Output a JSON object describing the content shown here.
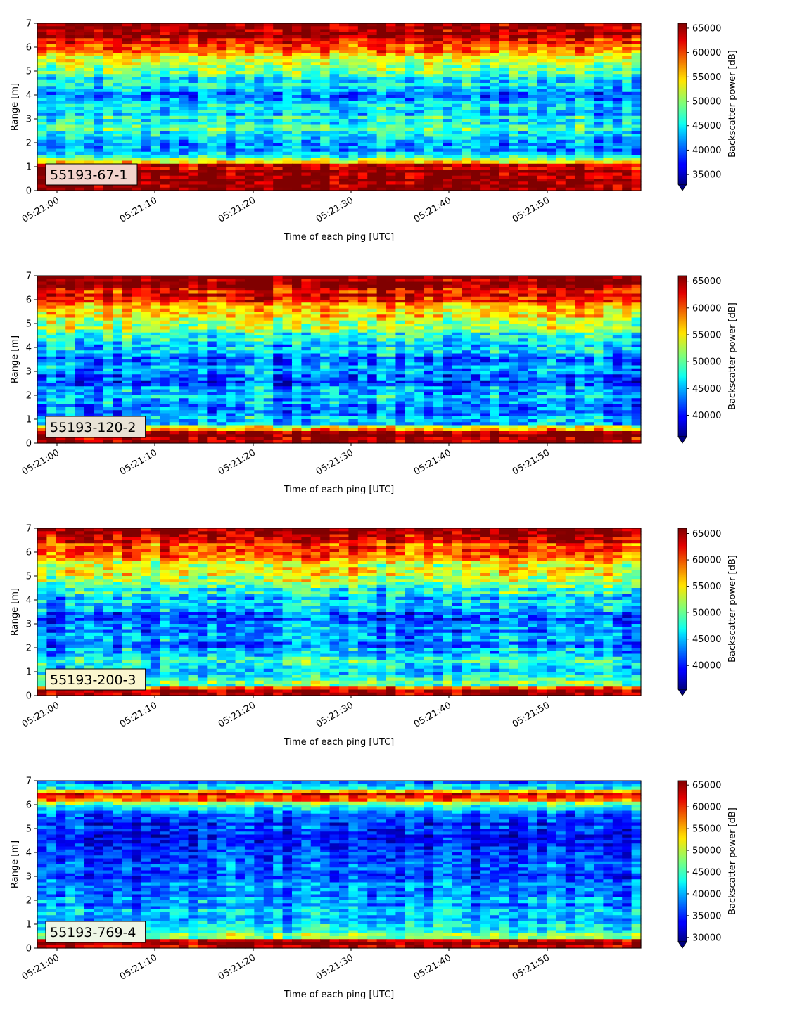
{
  "chart_data": [
    {
      "type": "heatmap",
      "label": "55193-67-1",
      "xlabel": "Time of each ping [UTC]",
      "ylabel": "Range [m]",
      "x_ticks": [
        "05:21:00",
        "05:21:10",
        "05:21:20",
        "05:21:30",
        "05:21:40",
        "05:21:50"
      ],
      "y_ticks": [
        "0",
        "1",
        "2",
        "3",
        "4",
        "5",
        "6",
        "7"
      ],
      "x_range_s": [
        -2,
        59.5
      ],
      "ylim": [
        0,
        7
      ],
      "colorbar_label": "Backscatter power [dB]",
      "colorbar_ticks": [
        "35000",
        "40000",
        "45000",
        "50000",
        "55000",
        "60000",
        "65000"
      ],
      "clim": [
        33000,
        66000
      ],
      "colormap": "jet",
      "profile": [
        {
          "r": 0.1,
          "v": 66000
        },
        {
          "r": 0.3,
          "v": 66000
        },
        {
          "r": 0.7,
          "v": 66000
        },
        {
          "r": 1.05,
          "v": 64000
        },
        {
          "r": 1.2,
          "v": 56000
        },
        {
          "r": 1.5,
          "v": 44000
        },
        {
          "r": 2.0,
          "v": 41000
        },
        {
          "r": 2.5,
          "v": 46000
        },
        {
          "r": 3.0,
          "v": 45000
        },
        {
          "r": 3.5,
          "v": 44000
        },
        {
          "r": 4.0,
          "v": 42000
        },
        {
          "r": 4.5,
          "v": 45000
        },
        {
          "r": 5.0,
          "v": 50000
        },
        {
          "r": 5.5,
          "v": 54000
        },
        {
          "r": 6.0,
          "v": 59000
        },
        {
          "r": 6.5,
          "v": 64000
        },
        {
          "r": 7.0,
          "v": 66000
        }
      ]
    },
    {
      "type": "heatmap",
      "label": "55193-120-2",
      "xlabel": "Time of each ping [UTC]",
      "ylabel": "Range [m]",
      "x_ticks": [
        "05:21:00",
        "05:21:10",
        "05:21:20",
        "05:21:30",
        "05:21:40",
        "05:21:50"
      ],
      "y_ticks": [
        "0",
        "1",
        "2",
        "3",
        "4",
        "5",
        "6",
        "7"
      ],
      "x_range_s": [
        -2,
        59.5
      ],
      "ylim": [
        0,
        7
      ],
      "colorbar_label": "Backscatter power [dB]",
      "colorbar_ticks": [
        "40000",
        "45000",
        "50000",
        "55000",
        "60000",
        "65000"
      ],
      "clim": [
        36000,
        66000
      ],
      "colormap": "jet",
      "profile": [
        {
          "r": 0.1,
          "v": 66000
        },
        {
          "r": 0.3,
          "v": 66000
        },
        {
          "r": 0.5,
          "v": 62000
        },
        {
          "r": 0.8,
          "v": 46000
        },
        {
          "r": 1.5,
          "v": 44000
        },
        {
          "r": 2.0,
          "v": 45000
        },
        {
          "r": 2.5,
          "v": 42000
        },
        {
          "r": 3.0,
          "v": 43000
        },
        {
          "r": 3.5,
          "v": 44000
        },
        {
          "r": 4.0,
          "v": 46000
        },
        {
          "r": 4.5,
          "v": 49000
        },
        {
          "r": 5.0,
          "v": 53000
        },
        {
          "r": 5.5,
          "v": 57000
        },
        {
          "r": 6.0,
          "v": 61000
        },
        {
          "r": 6.5,
          "v": 65000
        },
        {
          "r": 7.0,
          "v": 66000
        }
      ]
    },
    {
      "type": "heatmap",
      "label": "55193-200-3",
      "xlabel": "Time of each ping [UTC]",
      "ylabel": "Range [m]",
      "x_ticks": [
        "05:21:00",
        "05:21:10",
        "05:21:20",
        "05:21:30",
        "05:21:40",
        "05:21:50"
      ],
      "y_ticks": [
        "0",
        "1",
        "2",
        "3",
        "4",
        "5",
        "6",
        "7"
      ],
      "x_range_s": [
        -2,
        59.5
      ],
      "ylim": [
        0,
        7
      ],
      "colorbar_label": "Backscatter power [dB]",
      "colorbar_ticks": [
        "40000",
        "45000",
        "50000",
        "55000",
        "60000",
        "65000"
      ],
      "clim": [
        35500,
        66000
      ],
      "colormap": "jet",
      "profile": [
        {
          "r": 0.1,
          "v": 66000
        },
        {
          "r": 0.25,
          "v": 64000
        },
        {
          "r": 0.4,
          "v": 50000
        },
        {
          "r": 1.0,
          "v": 47000
        },
        {
          "r": 1.5,
          "v": 46000
        },
        {
          "r": 2.0,
          "v": 44000
        },
        {
          "r": 2.5,
          "v": 43000
        },
        {
          "r": 3.0,
          "v": 42000
        },
        {
          "r": 3.5,
          "v": 43000
        },
        {
          "r": 4.0,
          "v": 45000
        },
        {
          "r": 4.5,
          "v": 49000
        },
        {
          "r": 5.0,
          "v": 52000
        },
        {
          "r": 5.5,
          "v": 55000
        },
        {
          "r": 6.0,
          "v": 58000
        },
        {
          "r": 6.5,
          "v": 63000
        },
        {
          "r": 7.0,
          "v": 65000
        }
      ]
    },
    {
      "type": "heatmap",
      "label": "55193-769-4",
      "xlabel": "Time of each ping [UTC]",
      "ylabel": "Range [m]",
      "x_ticks": [
        "05:21:00",
        "05:21:10",
        "05:21:20",
        "05:21:30",
        "05:21:40",
        "05:21:50"
      ],
      "y_ticks": [
        "0",
        "1",
        "2",
        "3",
        "4",
        "5",
        "6",
        "7"
      ],
      "x_range_s": [
        -2,
        59.5
      ],
      "ylim": [
        0,
        7
      ],
      "colorbar_label": "Backscatter power [dB]",
      "colorbar_ticks": [
        "30000",
        "35000",
        "40000",
        "45000",
        "50000",
        "55000",
        "60000",
        "65000"
      ],
      "clim": [
        29000,
        66000
      ],
      "colormap": "jet",
      "profile": [
        {
          "r": 0.05,
          "v": 60000
        },
        {
          "r": 0.2,
          "v": 66000
        },
        {
          "r": 0.3,
          "v": 64000
        },
        {
          "r": 0.45,
          "v": 48000
        },
        {
          "r": 1.0,
          "v": 43000
        },
        {
          "r": 1.5,
          "v": 40000
        },
        {
          "r": 2.0,
          "v": 39000
        },
        {
          "r": 3.0,
          "v": 37000
        },
        {
          "r": 4.0,
          "v": 35000
        },
        {
          "r": 5.0,
          "v": 35000
        },
        {
          "r": 5.5,
          "v": 38000
        },
        {
          "r": 5.9,
          "v": 41000
        },
        {
          "r": 6.2,
          "v": 58000
        },
        {
          "r": 6.45,
          "v": 62000
        },
        {
          "r": 6.7,
          "v": 44000
        },
        {
          "r": 7.0,
          "v": 38000
        }
      ]
    }
  ]
}
